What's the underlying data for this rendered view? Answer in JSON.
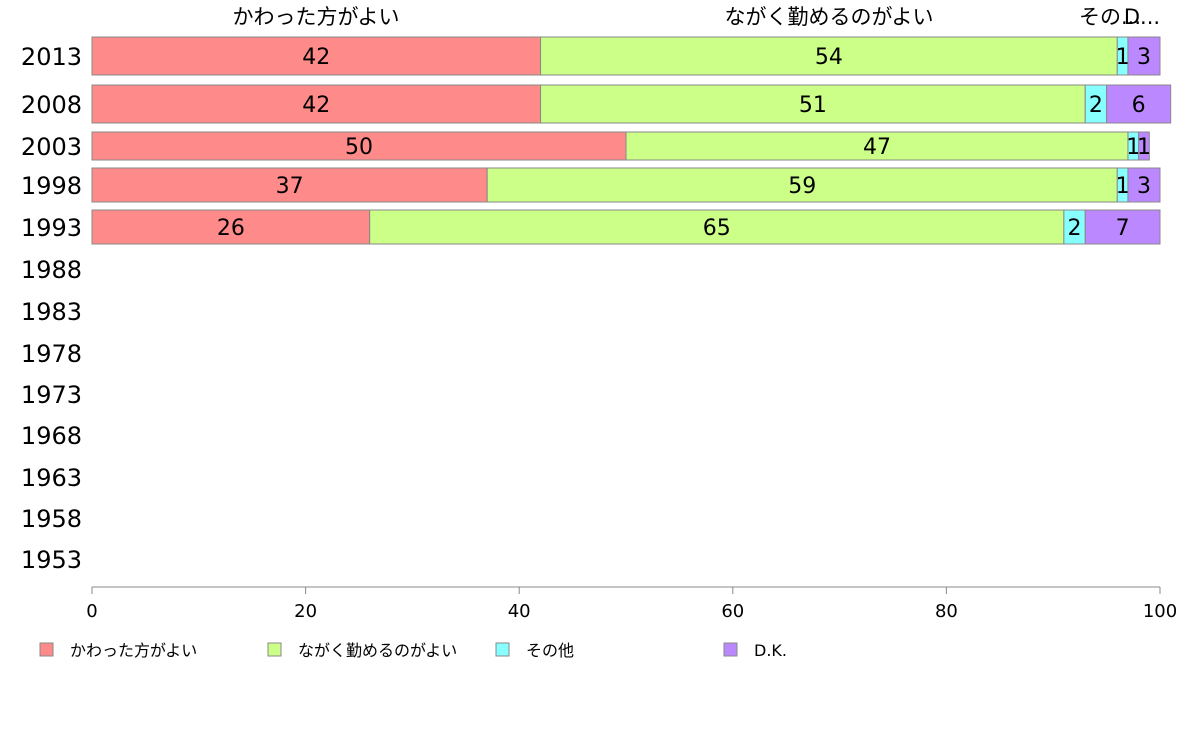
{
  "chart_data": {
    "type": "bar",
    "orientation": "horizontal",
    "stacked": true,
    "categories": [
      "2013",
      "2008",
      "2003",
      "1998",
      "1993",
      "1988",
      "1983",
      "1978",
      "1973",
      "1968",
      "1963",
      "1958",
      "1953"
    ],
    "series": [
      {
        "name": "かわった方がよい",
        "color": "#FF8A8A",
        "values": [
          42,
          42,
          50,
          37,
          26,
          null,
          null,
          null,
          null,
          null,
          null,
          null,
          null
        ]
      },
      {
        "name": "ながく勤めるのがよい",
        "color": "#CCFF88",
        "values": [
          54,
          51,
          47,
          59,
          65,
          null,
          null,
          null,
          null,
          null,
          null,
          null,
          null
        ]
      },
      {
        "name": "その他",
        "color": "#88FFFF",
        "values": [
          1,
          2,
          1,
          1,
          2,
          null,
          null,
          null,
          null,
          null,
          null,
          null,
          null
        ]
      },
      {
        "name": "D.K.",
        "color": "#BB88FF",
        "values": [
          3,
          6,
          1,
          3,
          7,
          null,
          null,
          null,
          null,
          null,
          null,
          null,
          null
        ]
      }
    ],
    "column_headers": [
      "かわった方がよい",
      "ながく勤めるのがよい",
      "その...",
      "D..."
    ],
    "xlim": [
      0,
      100
    ],
    "xticks": [
      "0",
      "20",
      "40",
      "60",
      "80",
      "100"
    ],
    "grid": false,
    "legend_position": "bottom"
  }
}
